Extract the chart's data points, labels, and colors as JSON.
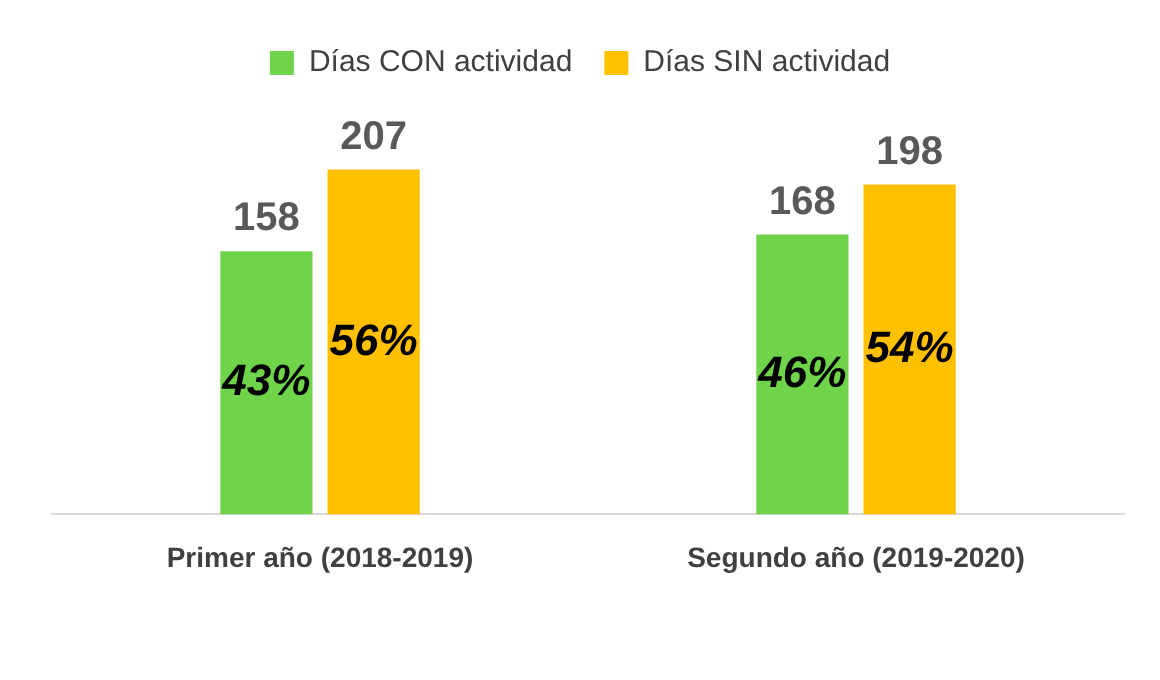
{
  "chart_data": {
    "type": "bar",
    "categories": [
      "Primer año (2018-2019)",
      "Segundo año (2019-2020)"
    ],
    "series": [
      {
        "name": "Días CON actividad",
        "color": "#70d44b",
        "values": [
          158,
          168
        ],
        "value_labels": [
          "158",
          "168"
        ]
      },
      {
        "name": "Días SIN actividad",
        "color": "#ffc000",
        "values": [
          207,
          198
        ],
        "value_labels": [
          "207",
          "198"
        ]
      }
    ],
    "annotations": [
      {
        "text": "43%",
        "x": "Primer año (2018-2019)",
        "y": 79
      },
      {
        "text": "56%",
        "x": "Primer año (2018-2019)",
        "y": 103
      },
      {
        "text": "46%",
        "x": "Segundo año (2019-2020)",
        "y": 84
      },
      {
        "text": "54%",
        "x": "Segundo año (2019-2020)",
        "y": 99
      }
    ],
    "legend": "top",
    "grid": false
  }
}
